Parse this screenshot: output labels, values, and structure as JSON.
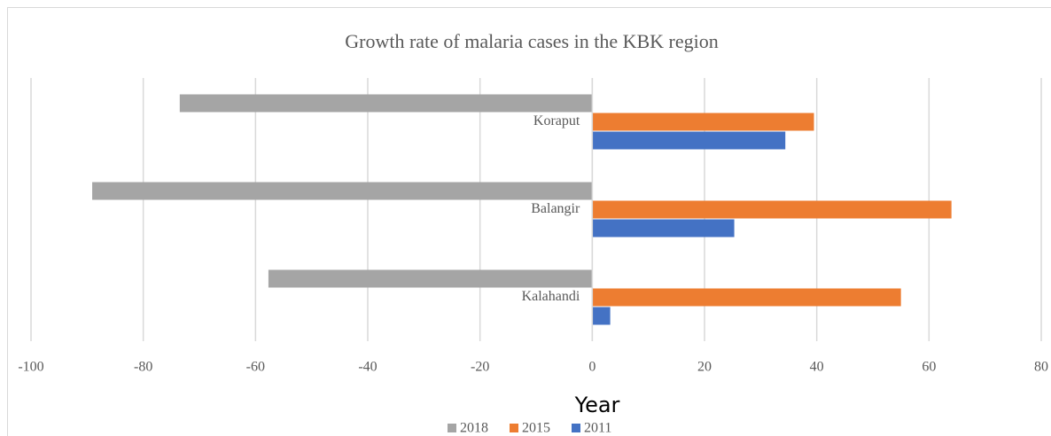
{
  "chart_data": {
    "type": "bar",
    "orientation": "horizontal",
    "title": "Growth rate of malaria cases in the KBK region",
    "x_label": "Year",
    "categories": [
      "Kalahandi",
      "Balangir",
      "Koraput"
    ],
    "series": [
      {
        "name": "2018",
        "color": "#a5a5a5",
        "values": [
          -57.7,
          -89.1,
          -73.5
        ]
      },
      {
        "name": "2015",
        "color": "#ed7d31",
        "values": [
          55,
          64,
          39.5
        ]
      },
      {
        "name": "2011",
        "color": "#4472c4",
        "values": [
          3.2,
          25.3,
          34.4
        ]
      }
    ],
    "xlim": [
      -100,
      80
    ],
    "xticks": [
      -100,
      -80,
      -60,
      -40,
      -20,
      0,
      20,
      40,
      60,
      80
    ],
    "grid": true,
    "legend": "bottom"
  }
}
